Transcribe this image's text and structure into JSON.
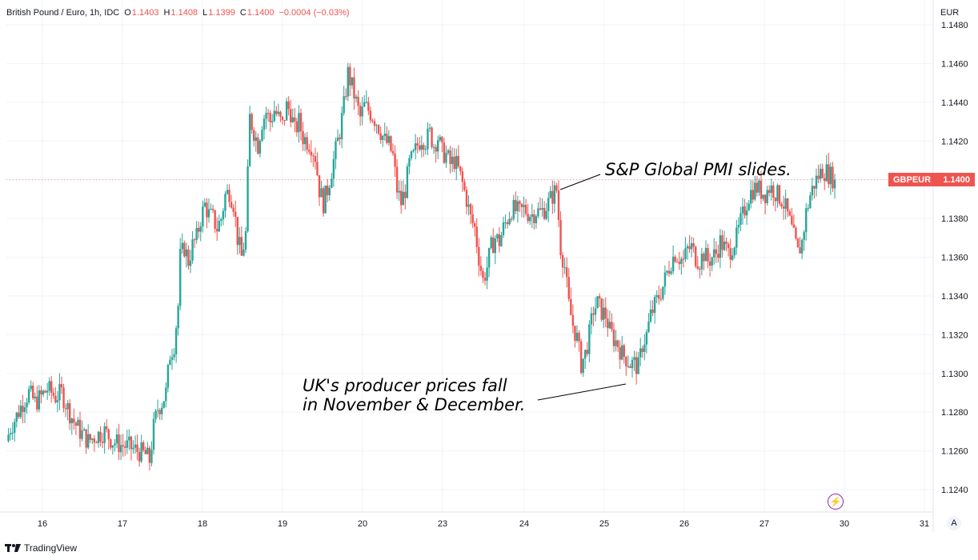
{
  "legend": {
    "symbol": "British Pound / Euro, 1h, IDC",
    "o_key": "O",
    "o": "1.1403",
    "h_key": "H",
    "h": "1.1408",
    "l_key": "L",
    "l": "1.1399",
    "c_key": "C",
    "c": "1.1400",
    "change": "−0.0004 (−0.03%)"
  },
  "currency": "EUR",
  "price_tag": {
    "symbol": "GBPEUR",
    "value": "1.1400"
  },
  "annotations": {
    "pmi": "S&P Global PMI slides.",
    "ppi_line1": "UK's producer prices fall",
    "ppi_line2": "in November & December."
  },
  "footer": {
    "brand": "TradingView"
  },
  "a_button": "A",
  "colors": {
    "up": "#26a69a",
    "down": "#ef5350",
    "grid": "#f0f3fa",
    "axis_text": "#131722"
  },
  "chart_data": {
    "type": "candlestick",
    "ylim": [
      1.123,
      1.1483
    ],
    "y_ticks": [
      "1.1240",
      "1.1260",
      "1.1280",
      "1.1300",
      "1.1320",
      "1.1340",
      "1.1360",
      "1.1380",
      "1.1400",
      "1.1420",
      "1.1440",
      "1.1460",
      "1.1480"
    ],
    "x_ticks": [
      "16",
      "17",
      "18",
      "19",
      "20",
      "23",
      "24",
      "25",
      "26",
      "27",
      "30",
      "31"
    ],
    "series": [
      {
        "path": [
          [
            0,
            1.1265
          ],
          [
            2,
            1.1272
          ],
          [
            5,
            1.1278
          ],
          [
            8,
            1.1285
          ],
          [
            11,
            1.129
          ],
          [
            14,
            1.1285
          ],
          [
            17,
            1.1288
          ],
          [
            20,
            1.1292
          ],
          [
            24,
            1.1288
          ],
          [
            27,
            1.129
          ],
          [
            30,
            1.1282
          ],
          [
            33,
            1.1275
          ],
          [
            36,
            1.127
          ],
          [
            40,
            1.1265
          ],
          [
            44,
            1.1268
          ],
          [
            48,
            1.127
          ],
          [
            52,
            1.1265
          ],
          [
            56,
            1.1263
          ],
          [
            60,
            1.1262
          ],
          [
            64,
            1.126
          ],
          [
            68,
            1.1258
          ],
          [
            70,
            1.1255
          ],
          [
            72,
            1.1272
          ],
          [
            74,
            1.1282
          ],
          [
            76,
            1.1285
          ],
          [
            78,
            1.129
          ],
          [
            80,
            1.131
          ],
          [
            82,
            1.1315
          ],
          [
            84,
            1.1335
          ],
          [
            85,
            1.136
          ],
          [
            87,
            1.1365
          ],
          [
            89,
            1.1358
          ],
          [
            91,
            1.1366
          ],
          [
            93,
            1.137
          ],
          [
            95,
            1.138
          ],
          [
            97,
            1.1387
          ],
          [
            99,
            1.1382
          ],
          [
            101,
            1.138
          ],
          [
            103,
            1.1375
          ],
          [
            105,
            1.138
          ],
          [
            107,
            1.1392
          ],
          [
            109,
            1.1394
          ],
          [
            111,
            1.1388
          ],
          [
            113,
            1.137
          ],
          [
            115,
            1.136
          ],
          [
            117,
            1.1372
          ],
          [
            119,
            1.1432
          ],
          [
            121,
            1.1425
          ],
          [
            123,
            1.1418
          ],
          [
            125,
            1.143
          ],
          [
            127,
            1.1435
          ],
          [
            129,
            1.143
          ],
          [
            131,
            1.1436
          ],
          [
            133,
            1.1432
          ],
          [
            135,
            1.1428
          ],
          [
            137,
            1.1438
          ],
          [
            139,
            1.1435
          ],
          [
            141,
            1.1425
          ],
          [
            143,
            1.143
          ],
          [
            145,
            1.1422
          ],
          [
            147,
            1.142
          ],
          [
            149,
            1.1418
          ],
          [
            151,
            1.1412
          ],
          [
            153,
            1.1395
          ],
          [
            155,
            1.1388
          ],
          [
            157,
            1.1395
          ],
          [
            159,
            1.1405
          ],
          [
            161,
            1.1415
          ],
          [
            163,
            1.1425
          ],
          [
            165,
            1.1438
          ],
          [
            167,
            1.1455
          ],
          [
            169,
            1.1448
          ],
          [
            171,
            1.144
          ],
          [
            173,
            1.1432
          ],
          [
            175,
            1.1438
          ],
          [
            177,
            1.1436
          ],
          [
            179,
            1.1433
          ],
          [
            181,
            1.143
          ],
          [
            183,
            1.1425
          ],
          [
            185,
            1.142
          ],
          [
            187,
            1.1418
          ],
          [
            189,
            1.1412
          ],
          [
            191,
            1.1395
          ],
          [
            193,
            1.1388
          ],
          [
            195,
            1.1395
          ],
          [
            197,
            1.1408
          ],
          [
            199,
            1.1412
          ],
          [
            201,
            1.1418
          ],
          [
            203,
            1.1422
          ],
          [
            205,
            1.142
          ],
          [
            207,
            1.1424
          ],
          [
            209,
            1.1418
          ],
          [
            211,
            1.1422
          ],
          [
            213,
            1.1414
          ],
          [
            215,
            1.1413
          ],
          [
            217,
            1.1408
          ],
          [
            219,
            1.141
          ],
          [
            221,
            1.1405
          ],
          [
            223,
            1.1398
          ],
          [
            225,
            1.139
          ],
          [
            227,
            1.138
          ],
          [
            229,
            1.1375
          ],
          [
            231,
            1.136
          ],
          [
            233,
            1.1348
          ],
          [
            235,
            1.1355
          ],
          [
            237,
            1.1365
          ],
          [
            239,
            1.137
          ],
          [
            241,
            1.1368
          ],
          [
            243,
            1.1375
          ],
          [
            245,
            1.138
          ],
          [
            247,
            1.1385
          ],
          [
            249,
            1.1384
          ],
          [
            251,
            1.1383
          ],
          [
            253,
            1.1385
          ],
          [
            255,
            1.1383
          ],
          [
            257,
            1.1382
          ],
          [
            259,
            1.1384
          ],
          [
            261,
            1.1383
          ],
          [
            263,
            1.1385
          ],
          [
            265,
            1.1388
          ],
          [
            267,
            1.1392
          ],
          [
            269,
            1.1395
          ],
          [
            271,
            1.1365
          ],
          [
            273,
            1.1355
          ],
          [
            275,
            1.1335
          ],
          [
            277,
            1.1325
          ],
          [
            279,
            1.1318
          ],
          [
            281,
            1.1305
          ],
          [
            283,
            1.131
          ],
          [
            285,
            1.132
          ],
          [
            287,
            1.1333
          ],
          [
            289,
            1.1336
          ],
          [
            291,
            1.1332
          ],
          [
            293,
            1.133
          ],
          [
            295,
            1.1322
          ],
          [
            297,
            1.1318
          ],
          [
            299,
            1.1315
          ],
          [
            301,
            1.131
          ],
          [
            303,
            1.1308
          ],
          [
            305,
            1.1305
          ],
          [
            307,
            1.1305
          ],
          [
            309,
            1.1303
          ],
          [
            311,
            1.1315
          ],
          [
            313,
            1.132
          ],
          [
            315,
            1.133
          ],
          [
            317,
            1.1335
          ],
          [
            319,
            1.134
          ],
          [
            321,
            1.1345
          ],
          [
            323,
            1.1352
          ],
          [
            325,
            1.1358
          ],
          [
            327,
            1.1362
          ],
          [
            329,
            1.136
          ],
          [
            331,
            1.1358
          ],
          [
            333,
            1.1364
          ],
          [
            335,
            1.1365
          ],
          [
            337,
            1.136
          ],
          [
            339,
            1.1358
          ],
          [
            341,
            1.1362
          ],
          [
            343,
            1.1358
          ],
          [
            345,
            1.136
          ],
          [
            347,
            1.1362
          ],
          [
            349,
            1.1368
          ],
          [
            351,
            1.1365
          ],
          [
            353,
            1.1362
          ],
          [
            355,
            1.1366
          ],
          [
            357,
            1.137
          ],
          [
            359,
            1.1378
          ],
          [
            361,
            1.1385
          ],
          [
            363,
            1.1392
          ],
          [
            365,
            1.1395
          ],
          [
            367,
            1.1396
          ],
          [
            369,
            1.1394
          ],
          [
            371,
            1.1393
          ],
          [
            373,
            1.1396
          ],
          [
            375,
            1.1395
          ],
          [
            377,
            1.1392
          ],
          [
            379,
            1.139
          ],
          [
            381,
            1.1385
          ],
          [
            383,
            1.1378
          ],
          [
            385,
            1.137
          ],
          [
            387,
            1.1362
          ],
          [
            389,
            1.1368
          ],
          [
            391,
            1.1383
          ],
          [
            393,
            1.1392
          ],
          [
            395,
            1.1398
          ],
          [
            397,
            1.1402
          ],
          [
            399,
            1.1405
          ],
          [
            401,
            1.1404
          ],
          [
            403,
            1.1402
          ],
          [
            405,
            1.14
          ]
        ]
      }
    ]
  }
}
